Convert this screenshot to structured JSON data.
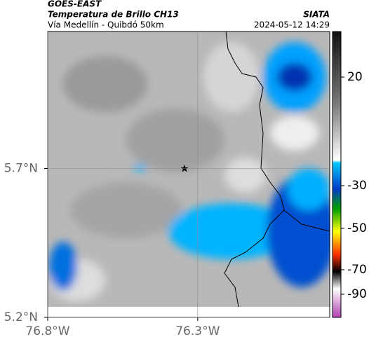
{
  "header": {
    "satellite": "GOES-EAST",
    "product": "Temperatura de Brillo CH13",
    "route": "Vía Medellín - Quibdó 50km",
    "source": "SIATA",
    "timestamp": "2024-05-12 14:29"
  },
  "map": {
    "xlim": [
      -76.8,
      -75.86
    ],
    "ylim": [
      5.2,
      6.16
    ],
    "xticks": [
      {
        "value": -76.8,
        "label": "76.8°W"
      },
      {
        "value": -76.3,
        "label": "76.3°W"
      }
    ],
    "yticks": [
      {
        "value": 5.2,
        "label": "5.2°N"
      },
      {
        "value": 5.7,
        "label": "5.7°N"
      }
    ]
  },
  "colorbar": {
    "ticks": [
      20,
      -30,
      -50,
      -70,
      -90
    ]
  }
}
